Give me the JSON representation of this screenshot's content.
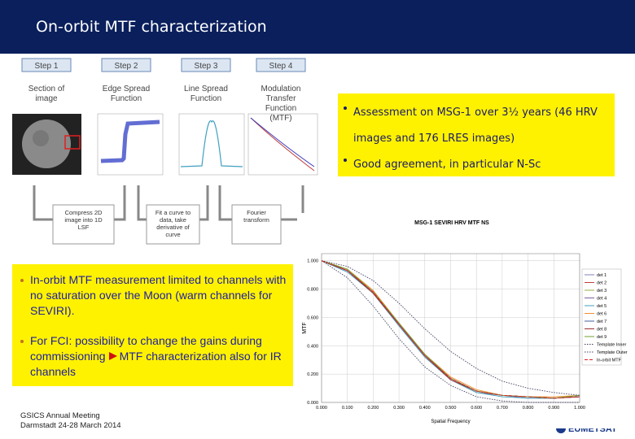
{
  "header": {
    "title": "On-orbit MTF characterization"
  },
  "steps": [
    {
      "label": "Step 1",
      "caption": "Section of image"
    },
    {
      "label": "Step 2",
      "caption": "Edge Spread Function"
    },
    {
      "label": "Step 3",
      "caption": "Line Spread Function"
    },
    {
      "label": "Step 4",
      "caption": "Modulation Transfer Function (MTF)"
    }
  ],
  "processes": [
    "Compress 2D image into 1D LSF",
    "Fit a curve to data, take derivative of curve",
    "Fourier transform"
  ],
  "bullets_right": [
    "Assessment on MSG-1 over 3½ years (46 HRV images and 176 LRES images)",
    "Good agreement, in particular N-Sc"
  ],
  "bullets_left": [
    {
      "text": "In-orbit MTF measurement limited to channels with no saturation over the Moon (warm channels for SEVIRI)."
    },
    {
      "text": "For FCI: possibility to change the gains during commissioning",
      "continuation": "MTF characterization also for IR channels"
    }
  ],
  "footer": {
    "lines": [
      "GSICS Annual Meeting",
      "Darmstadt 24-28 March 2014"
    ],
    "logo": "EUMETSAT"
  },
  "chart_data": {
    "type": "line",
    "title": "MSG-1 SEVIRI HRV MTF NS",
    "x_label": "Spatial Frequency",
    "y_label": "MTF",
    "x": [
      0,
      0.1,
      0.2,
      0.3,
      0.4,
      0.5,
      0.6,
      0.7,
      0.8,
      0.9,
      1.0
    ],
    "xlim": [
      0,
      1
    ],
    "ylim": [
      0,
      1.05
    ],
    "xticks": [
      {
        "value": 0,
        "label": "0.000"
      },
      {
        "value": 0.1,
        "label": "0.100"
      },
      {
        "value": 0.2,
        "label": "0.200"
      },
      {
        "value": 0.3,
        "label": "0.300"
      },
      {
        "value": 0.4,
        "label": "0.400"
      },
      {
        "value": 0.5,
        "label": "0.500"
      },
      {
        "value": 0.6,
        "label": "0.600"
      },
      {
        "value": 0.7,
        "label": "0.700"
      },
      {
        "value": 0.8,
        "label": "0.800"
      },
      {
        "value": 0.9,
        "label": "0.900"
      },
      {
        "value": 1.0,
        "label": "1.000"
      }
    ],
    "yticks": [
      {
        "value": 0,
        "label": "0.000"
      },
      {
        "value": 0.2,
        "label": "0.200"
      },
      {
        "value": 0.4,
        "label": "0.400"
      },
      {
        "value": 0.6,
        "label": "0.600"
      },
      {
        "value": 0.8,
        "label": "0.800"
      },
      {
        "value": 1.0,
        "label": "1.000"
      }
    ],
    "grid": true,
    "series": [
      {
        "name": "det 1",
        "color": "#7f7fbf",
        "style": "solid",
        "values": [
          1.0,
          0.93,
          0.78,
          0.55,
          0.33,
          0.17,
          0.08,
          0.05,
          0.04,
          0.03,
          0.04
        ]
      },
      {
        "name": "det 2",
        "color": "#c04040",
        "style": "solid",
        "values": [
          1.0,
          0.93,
          0.77,
          0.54,
          0.32,
          0.16,
          0.08,
          0.05,
          0.04,
          0.03,
          0.04
        ]
      },
      {
        "name": "det 3",
        "color": "#90b040",
        "style": "solid",
        "values": [
          1.0,
          0.94,
          0.79,
          0.56,
          0.34,
          0.17,
          0.08,
          0.05,
          0.04,
          0.03,
          0.05
        ]
      },
      {
        "name": "det 4",
        "color": "#8060a0",
        "style": "solid",
        "values": [
          1.0,
          0.93,
          0.78,
          0.55,
          0.33,
          0.16,
          0.07,
          0.05,
          0.03,
          0.03,
          0.04
        ]
      },
      {
        "name": "det 5",
        "color": "#40a0c0",
        "style": "solid",
        "values": [
          1.0,
          0.92,
          0.77,
          0.54,
          0.32,
          0.16,
          0.07,
          0.04,
          0.03,
          0.03,
          0.04
        ]
      },
      {
        "name": "det 6",
        "color": "#f09030",
        "style": "solid",
        "values": [
          1.0,
          0.94,
          0.79,
          0.56,
          0.34,
          0.18,
          0.09,
          0.05,
          0.04,
          0.04,
          0.05
        ]
      },
      {
        "name": "det 7",
        "color": "#4060a0",
        "style": "solid",
        "values": [
          1.0,
          0.93,
          0.78,
          0.55,
          0.33,
          0.17,
          0.08,
          0.05,
          0.04,
          0.03,
          0.04
        ]
      },
      {
        "name": "det 8",
        "color": "#a03030",
        "style": "solid",
        "values": [
          1.0,
          0.93,
          0.77,
          0.55,
          0.33,
          0.16,
          0.08,
          0.05,
          0.04,
          0.03,
          0.04
        ]
      },
      {
        "name": "det 9",
        "color": "#70a030",
        "style": "solid",
        "values": [
          1.0,
          0.94,
          0.78,
          0.56,
          0.34,
          0.17,
          0.08,
          0.05,
          0.04,
          0.03,
          0.05
        ]
      },
      {
        "name": "Template Inner",
        "color": "#404060",
        "style": "dotted",
        "values": [
          1.0,
          0.88,
          0.68,
          0.45,
          0.25,
          0.12,
          0.04,
          0.01,
          0.0,
          0.0,
          0.0
        ]
      },
      {
        "name": "Template Outer",
        "color": "#404060",
        "style": "dotted",
        "values": [
          1.0,
          0.96,
          0.86,
          0.7,
          0.52,
          0.36,
          0.24,
          0.15,
          0.1,
          0.07,
          0.05
        ]
      },
      {
        "name": "In-orbit MTF",
        "color": "#e02020",
        "style": "dashed",
        "values": [
          1.0,
          0.93,
          0.78,
          0.55,
          0.33,
          0.17,
          0.08,
          0.05,
          0.04,
          0.03,
          0.04
        ]
      }
    ]
  }
}
